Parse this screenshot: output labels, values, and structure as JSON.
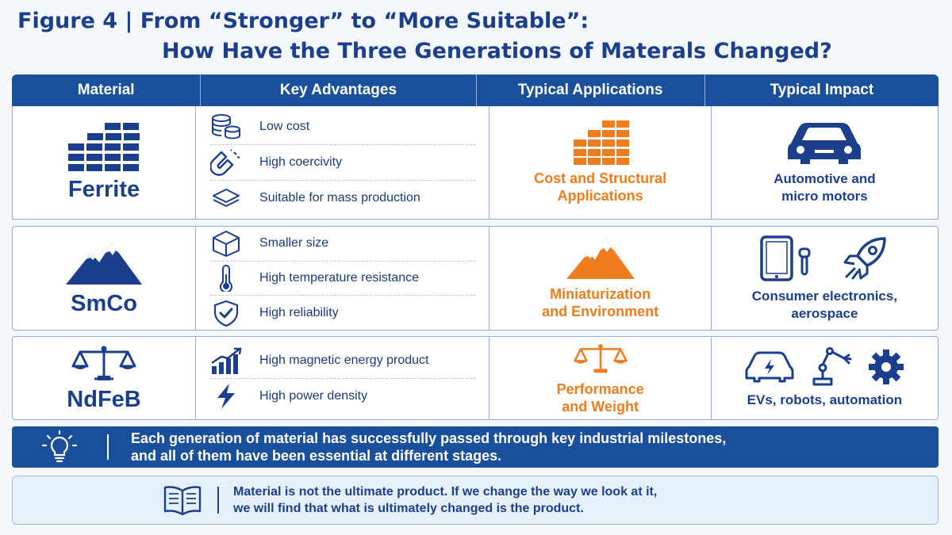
{
  "title": {
    "line1": "Figure 4 | From “Stronger” to “More Suitable”:",
    "line2": "How Have the Three Generations of Materals Changed?"
  },
  "headers": [
    "Material",
    "Key Advantages",
    "Typical Applications",
    "Typical Impact"
  ],
  "rows": [
    {
      "material": "Ferrite",
      "material_icon": "brick-wall-icon",
      "advantages": [
        {
          "icon": "coin-stack-icon",
          "text": "Low cost"
        },
        {
          "icon": "magnet-icon",
          "text": "High coercivity"
        },
        {
          "icon": "layers-icon",
          "text": "Suitable for mass production"
        }
      ],
      "application": {
        "icon": "brick-wall-icon",
        "line1": "Cost and Structural",
        "line2": "Applications"
      },
      "impact": {
        "icons": [
          "car-icon"
        ],
        "line1": "Automotive and",
        "line2": "micro motors"
      }
    },
    {
      "material": "SmCo",
      "material_icon": "mountain-icon",
      "advantages": [
        {
          "icon": "cube-icon",
          "text": "Smaller size"
        },
        {
          "icon": "thermometer-icon",
          "text": "High temperature resistance"
        },
        {
          "icon": "shield-check-icon",
          "text": "High reliability"
        }
      ],
      "application": {
        "icon": "mountain-icon",
        "line1": "Miniaturization",
        "line2": "and Environment"
      },
      "impact": {
        "icons": [
          "tablet-earbud-icon",
          "rocket-icon"
        ],
        "line1": "Consumer electronics,",
        "line2": "aerospace"
      }
    },
    {
      "material": "NdFeB",
      "material_icon": "balance-scale-icon",
      "advantages": [
        {
          "icon": "bar-chart-up-icon",
          "text": "High magnetic energy product"
        },
        {
          "icon": "lightning-icon",
          "text": "High power density"
        }
      ],
      "application": {
        "icon": "balance-scale-icon",
        "line1": "Performance",
        "line2": "and Weight"
      },
      "impact": {
        "icons": [
          "ev-car-icon",
          "robot-arm-icon",
          "gear-icon"
        ],
        "line1": "EVs,  robots, automation",
        "line2": ""
      }
    }
  ],
  "banner": {
    "icon": "lightbulb-icon",
    "line1": "Each generation of material has successfully passed through key industrial milestones,",
    "line2": "and all of them have been essential at different stages."
  },
  "note": {
    "icon": "open-book-icon",
    "line1": "Material is not the ultimate product. If we change the way we look at it,",
    "line2": "we will find that what is ultimately changed is the product."
  },
  "colors": {
    "primary": "#1a4f9c",
    "accent": "#f07c1e",
    "background": "#f4f7fb"
  }
}
